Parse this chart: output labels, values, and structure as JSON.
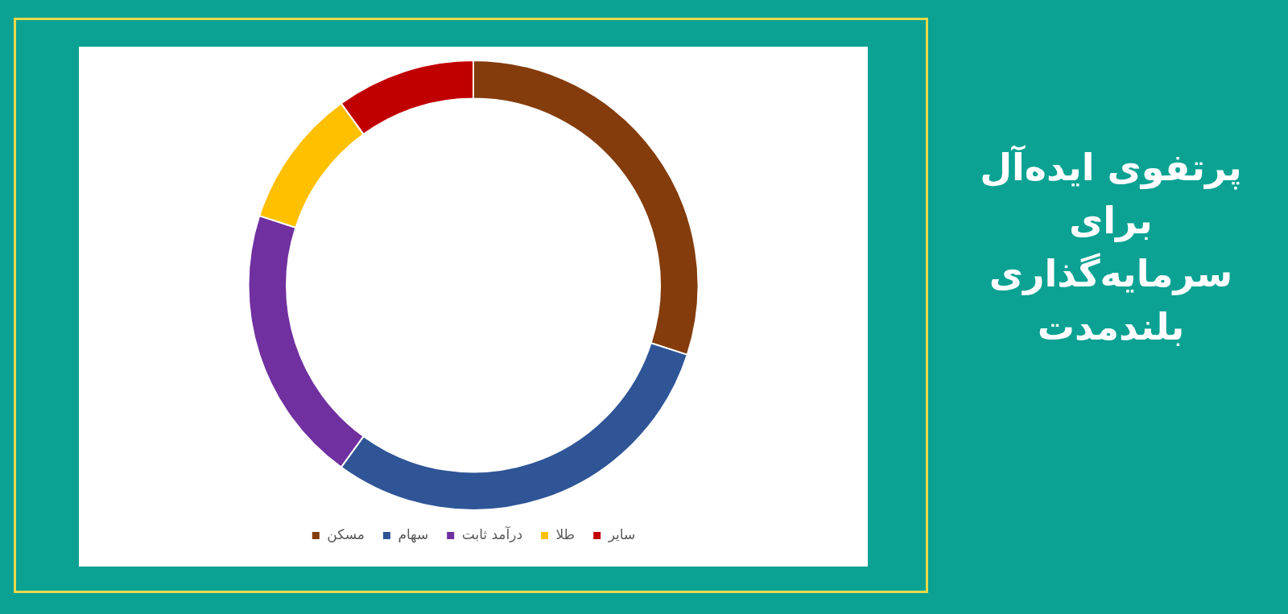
{
  "chart_data": {
    "type": "donut",
    "title": "پرتفوی ایده‌آل\nبرای\nسرمایه‌گذاری\nبلندمدت",
    "categories": [
      "مسکن",
      "سهام",
      "درآمد ثابت",
      "طلا",
      "سایر"
    ],
    "values": [
      30,
      30,
      20,
      10,
      10
    ],
    "colors": [
      "#843c0c",
      "#2f5597",
      "#7030a0",
      "#ffc000",
      "#c00000"
    ],
    "legend": "bottom"
  }
}
